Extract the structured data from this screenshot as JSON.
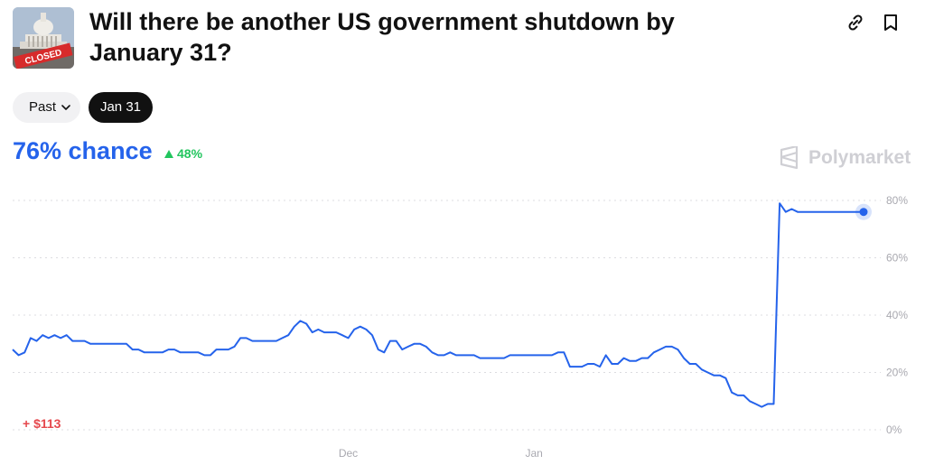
{
  "market": {
    "title": "Will there be another US government shutdown by January 31?",
    "thumbnail_icon": "capitol-closed-thumbnail",
    "thumbnail_sign": "CLOSED"
  },
  "toolbar": {
    "link_icon": "link-icon",
    "bookmark_icon": "bookmark-icon"
  },
  "filters": {
    "past_label": "Past",
    "selected_label": "Jan 31"
  },
  "summary": {
    "chance_label": "76% chance",
    "delta_label": "48%",
    "delta_color": "#22c55e",
    "accent_color": "#2563eb"
  },
  "brand": {
    "name": "Polymarket"
  },
  "pnl": {
    "label": "+ $113",
    "color": "#e5484d"
  },
  "chart_data": {
    "type": "line",
    "title": "",
    "xlabel": "",
    "ylabel": "",
    "ylim": [
      0,
      80
    ],
    "yticks": [
      "0%",
      "20%",
      "40%",
      "60%",
      "80%"
    ],
    "xticks": [
      {
        "label": "Dec",
        "x": 56
      },
      {
        "label": "Jan",
        "x": 87
      }
    ],
    "grid": true,
    "series": [
      {
        "color": "#2563eb",
        "x": [
          0,
          1,
          2,
          3,
          4,
          5,
          6,
          7,
          8,
          9,
          10,
          11,
          12,
          13,
          14,
          15,
          16,
          17,
          18,
          19,
          20,
          21,
          22,
          23,
          24,
          25,
          26,
          27,
          28,
          29,
          30,
          31,
          32,
          33,
          34,
          35,
          36,
          37,
          38,
          39,
          40,
          41,
          42,
          43,
          44,
          45,
          46,
          47,
          48,
          49,
          50,
          51,
          52,
          53,
          54,
          55,
          56,
          57,
          58,
          59,
          60,
          61,
          62,
          63,
          64,
          65,
          66,
          67,
          68,
          69,
          70,
          71,
          72,
          73,
          74,
          75,
          76,
          77,
          78,
          79,
          80,
          81,
          82,
          83,
          84,
          85,
          86,
          87,
          88,
          89,
          90,
          91,
          92,
          93,
          94,
          95,
          96,
          97,
          98,
          99,
          100,
          101,
          102,
          103,
          104,
          105,
          106,
          107,
          108,
          109,
          110,
          111,
          112,
          113,
          114,
          115,
          116,
          117,
          118,
          119,
          120,
          121,
          122,
          123,
          124,
          125,
          126,
          127,
          128,
          129,
          130,
          131,
          132,
          133,
          134,
          135,
          136,
          137,
          138,
          139,
          140,
          141,
          142
        ],
        "values": [
          28,
          26,
          27,
          32,
          31,
          33,
          32,
          33,
          32,
          33,
          31,
          31,
          31,
          30,
          30,
          30,
          30,
          30,
          30,
          30,
          28,
          28,
          27,
          27,
          27,
          27,
          28,
          28,
          27,
          27,
          27,
          27,
          26,
          26,
          28,
          28,
          28,
          29,
          32,
          32,
          31,
          31,
          31,
          31,
          31,
          32,
          33,
          36,
          38,
          37,
          34,
          35,
          34,
          34,
          34,
          33,
          32,
          35,
          36,
          35,
          33,
          28,
          27,
          31,
          31,
          28,
          29,
          30,
          30,
          29,
          27,
          26,
          26,
          27,
          26,
          26,
          26,
          26,
          25,
          25,
          25,
          25,
          25,
          26,
          26,
          26,
          26,
          26,
          26,
          26,
          26,
          27,
          27,
          22,
          22,
          22,
          23,
          23,
          22,
          26,
          23,
          23,
          25,
          24,
          24,
          25,
          25,
          27,
          28,
          29,
          29,
          28,
          25,
          23,
          23,
          21,
          20,
          19,
          19,
          18,
          13,
          12,
          12,
          10,
          9,
          8,
          9,
          9,
          79,
          76,
          77,
          76,
          76,
          76,
          76,
          76,
          76,
          76,
          76,
          76,
          76,
          76,
          76
        ],
        "end_marker": 76
      }
    ]
  }
}
